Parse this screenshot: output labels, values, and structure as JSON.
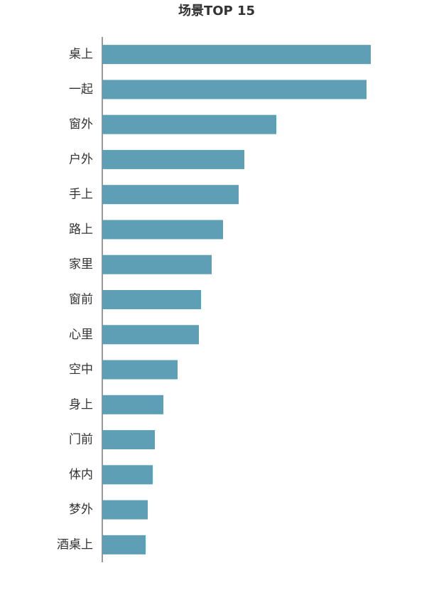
{
  "chart_data": {
    "type": "bar",
    "orientation": "horizontal",
    "title": "场景TOP 15",
    "categories": [
      "桌上",
      "一起",
      "窗外",
      "户外",
      "手上",
      "路上",
      "家里",
      "窗前",
      "心里",
      "空中",
      "身上",
      "门前",
      "体内",
      "梦外",
      "酒桌上"
    ],
    "values": [
      378,
      372,
      245,
      200,
      192,
      170,
      154,
      139,
      136,
      106,
      86,
      74,
      71,
      64,
      61
    ],
    "color": "#5f9fb5",
    "xlim": [
      0,
      400
    ]
  }
}
